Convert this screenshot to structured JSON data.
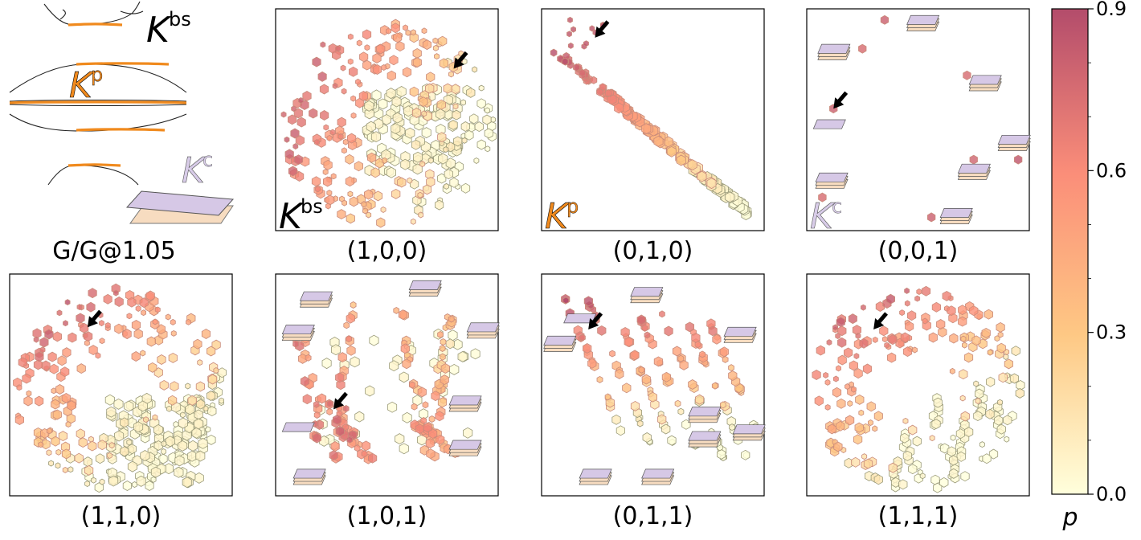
{
  "figure": {
    "schematic_caption": "G/G@1.05",
    "band_labels": {
      "bs": {
        "main": "K",
        "sup": "bs"
      },
      "p": {
        "main": "K",
        "sup": "p"
      },
      "c": {
        "main": "K",
        "sup": "c"
      }
    }
  },
  "colors": {
    "flat_band": "#f08a1e",
    "k_p_fill": "#f08a1e",
    "k_c_fill": "#d8cce8",
    "sheet_top": "#d6c8e6",
    "sheet_bottom": "#f7dcc0",
    "cmap_low": "#ffffdc",
    "cmap_mid": "#fec884",
    "cmap_mid2": "#fb8e79",
    "cmap_high": "#b34c6b",
    "arrow": "#000000"
  },
  "chart_data": [
    {
      "type": "scatter",
      "caption": "(1,0,0)",
      "corner_label": "bs",
      "pattern": "ring",
      "arrows": [
        [
          0.8,
          0.27
        ]
      ]
    },
    {
      "type": "scatter",
      "caption": "(0,1,0)",
      "corner_label": "p",
      "pattern": "diagonal",
      "arrows": [
        [
          0.24,
          0.13
        ]
      ]
    },
    {
      "type": "scatter",
      "caption": "(0,0,1)",
      "corner_label": "c",
      "pattern": "sparse",
      "arrows": [
        [
          0.12,
          0.45
        ]
      ]
    },
    {
      "type": "scatter",
      "caption": "(1,1,0)",
      "pattern": "ring_low",
      "arrows": [
        [
          0.35,
          0.24
        ]
      ]
    },
    {
      "type": "scatter",
      "caption": "(1,0,1)",
      "pattern": "stripes",
      "arrows": [
        [
          0.26,
          0.61
        ]
      ]
    },
    {
      "type": "scatter",
      "caption": "(0,1,1)",
      "pattern": "diag_stripes",
      "arrows": [
        [
          0.21,
          0.25
        ]
      ]
    },
    {
      "type": "scatter",
      "caption": "(1,1,1)",
      "pattern": "ring_cluster",
      "arrows": [
        [
          0.3,
          0.25
        ]
      ]
    }
  ],
  "colorbar": {
    "label": "p",
    "range": [
      0.0,
      0.9
    ],
    "ticks": [
      {
        "value": 0.0,
        "label": "0.0"
      },
      {
        "value": 0.3,
        "label": "0.3"
      },
      {
        "value": 0.6,
        "label": "0.6"
      },
      {
        "value": 0.9,
        "label": "0.9"
      }
    ]
  }
}
